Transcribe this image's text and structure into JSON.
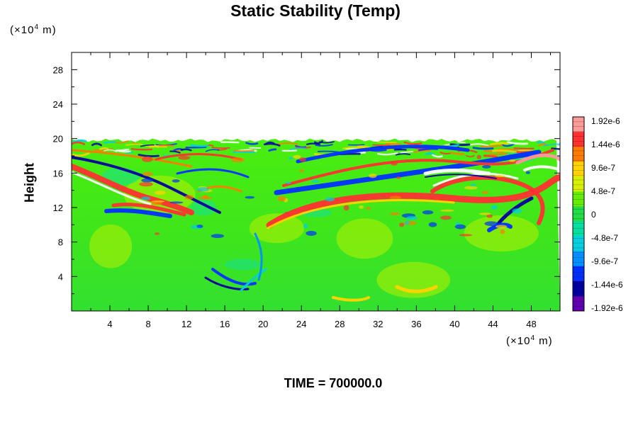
{
  "chart_data": {
    "type": "heatmap",
    "title": "Static Stability (Temp)",
    "xlabel": "",
    "ylabel": "Height",
    "x_unit": "(×10⁴ m)",
    "y_unit": "(×10⁴ m)",
    "x_range": [
      0,
      51
    ],
    "y_range": [
      0,
      30
    ],
    "x_ticks": [
      4,
      8,
      12,
      16,
      20,
      24,
      28,
      32,
      36,
      40,
      44,
      48
    ],
    "y_ticks": [
      4,
      8,
      12,
      16,
      20,
      24,
      28
    ],
    "data_top_height": 19.8,
    "colorbar": {
      "labels": [
        "1.92e-6",
        "1.44e-6",
        "9.6e-7",
        "4.8e-7",
        "0",
        "-4.8e-7",
        "-9.6e-7",
        "-1.44e-6",
        "-1.92e-6"
      ],
      "values": [
        1.92e-06,
        1.44e-06,
        9.6e-07,
        4.8e-07,
        0,
        -4.8e-07,
        -9.6e-07,
        -1.44e-06,
        -1.92e-06
      ],
      "colors": [
        "#ff9a9a",
        "#ff3030",
        "#ff7a00",
        "#ffd400",
        "#d8f000",
        "#66ee00",
        "#22dd44",
        "#00e0a0",
        "#00d0e0",
        "#0090ff",
        "#0030ff",
        "#0000a0",
        "#6000b0"
      ]
    },
    "footer": "TIME = 700000.0"
  }
}
